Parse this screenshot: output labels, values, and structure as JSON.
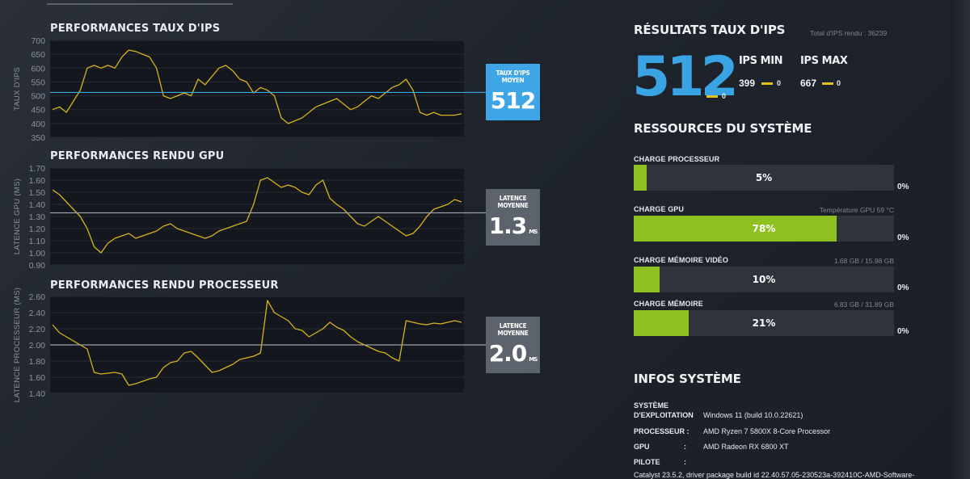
{
  "charts": [
    {
      "title": "PERFORMANCES TAUX D'IPS",
      "ylabel": "TAUX D'IPS",
      "ticks": [
        "700",
        "650",
        "600",
        "550",
        "500",
        "450",
        "400",
        "350"
      ],
      "ymin": 350,
      "ymax": 700,
      "avg": 512,
      "avg_color": "#3ea6e6",
      "avg_label": "TAUX D'IPS MOYEN",
      "avg_value": "512",
      "avg_unit": ""
    },
    {
      "title": "PERFORMANCES RENDU GPU",
      "ylabel": "LATENCE GPU (MS)",
      "ticks": [
        "1.70",
        "1.60",
        "1.50",
        "1.40",
        "1.30",
        "1.20",
        "1.10",
        "1.00",
        "0.90"
      ],
      "ymin": 0.9,
      "ymax": 1.7,
      "avg": 1.33,
      "avg_color": "#9aa0a8",
      "avg_label": "LATENCE MOYENNE",
      "avg_value": "1.3",
      "avg_unit": "MS"
    },
    {
      "title": "PERFORMANCES RENDU PROCESSEUR",
      "ylabel": "LATENCE PROCESSEUR (MS)",
      "ticks": [
        "2.60",
        "2.40",
        "2.20",
        "2.00",
        "1.80",
        "1.60",
        "1.40"
      ],
      "ymin": 1.4,
      "ymax": 2.6,
      "avg": 2.0,
      "avg_color": "#9aa0a8",
      "avg_label": "LATENCE MOYENNE",
      "avg_value": "2.0",
      "avg_unit": "MS"
    }
  ],
  "chart_data": [
    {
      "type": "line",
      "title": "PERFORMANCES TAUX D'IPS",
      "ylabel": "TAUX D'IPS",
      "ylim": [
        350,
        700
      ],
      "series": [
        {
          "values": [
            450,
            460,
            440,
            480,
            520,
            600,
            610,
            600,
            610,
            600,
            640,
            665,
            660,
            650,
            640,
            600,
            500,
            490,
            500,
            510,
            500,
            560,
            540,
            570,
            600,
            610,
            590,
            560,
            550,
            510,
            530,
            520,
            500,
            420,
            400,
            410,
            420,
            440,
            460,
            470,
            480,
            490,
            470,
            450,
            460,
            480,
            500,
            490,
            510,
            530,
            540,
            560,
            520,
            440,
            430,
            440,
            430,
            430,
            430,
            435
          ]
        }
      ],
      "reference_line": 512
    },
    {
      "type": "line",
      "title": "PERFORMANCES RENDU GPU",
      "ylabel": "LATENCE GPU (MS)",
      "ylim": [
        0.9,
        1.7
      ],
      "series": [
        {
          "values": [
            1.52,
            1.48,
            1.42,
            1.36,
            1.3,
            1.2,
            1.05,
            1.0,
            1.08,
            1.12,
            1.14,
            1.16,
            1.12,
            1.14,
            1.16,
            1.18,
            1.22,
            1.24,
            1.2,
            1.18,
            1.16,
            1.14,
            1.12,
            1.14,
            1.18,
            1.2,
            1.22,
            1.24,
            1.26,
            1.4,
            1.6,
            1.62,
            1.58,
            1.54,
            1.56,
            1.54,
            1.5,
            1.48,
            1.56,
            1.6,
            1.45,
            1.4,
            1.36,
            1.3,
            1.24,
            1.22,
            1.26,
            1.3,
            1.26,
            1.22,
            1.18,
            1.14,
            1.16,
            1.22,
            1.3,
            1.36,
            1.38,
            1.4,
            1.44,
            1.42
          ]
        }
      ],
      "reference_line": 1.33
    },
    {
      "type": "line",
      "title": "PERFORMANCES RENDU PROCESSEUR",
      "ylabel": "LATENCE PROCESSEUR (MS)",
      "ylim": [
        1.4,
        2.6
      ],
      "series": [
        {
          "values": [
            2.25,
            2.15,
            2.1,
            2.05,
            2.0,
            1.95,
            1.66,
            1.64,
            1.65,
            1.66,
            1.64,
            1.5,
            1.52,
            1.55,
            1.58,
            1.6,
            1.72,
            1.78,
            1.8,
            1.9,
            1.92,
            1.84,
            1.75,
            1.66,
            1.68,
            1.72,
            1.76,
            1.82,
            1.84,
            1.86,
            1.9,
            2.55,
            2.4,
            2.35,
            2.3,
            2.2,
            2.18,
            2.1,
            2.15,
            2.2,
            2.28,
            2.22,
            2.18,
            2.1,
            2.04,
            2.0,
            1.96,
            1.92,
            1.9,
            1.84,
            1.8,
            2.3,
            2.28,
            2.26,
            2.25,
            2.27,
            2.26,
            2.28,
            2.3,
            2.28
          ]
        }
      ],
      "reference_line": 2.0
    }
  ],
  "results": {
    "title": "RÉSULTATS TAUX D'IPS",
    "total": "Total d'IPS rendu : 36239",
    "avg_fps": "512",
    "avg_zero": "0",
    "min_label": "IPS MIN",
    "min_value": "399",
    "min_zero": "0",
    "max_label": "IPS MAX",
    "max_value": "667",
    "max_zero": "0",
    "fps_color": "#3aa3e3",
    "dash_color": "#e2c21a"
  },
  "resources": {
    "title": "RESSOURCES DU SYSTÈME",
    "bar_color": "#8ec021",
    "items": [
      {
        "label": "CHARGE PROCESSEUR",
        "right": "",
        "percent": 5,
        "text": "5%",
        "zero": "0%"
      },
      {
        "label": "CHARGE GPU",
        "right": "Température GPU 59 °C",
        "percent": 78,
        "text": "78%",
        "zero": "0%"
      },
      {
        "label": "CHARGE MÉMOIRE VIDÉO",
        "right": "1.68 GB / 15.98 GB",
        "percent": 10,
        "text": "10%",
        "zero": "0%"
      },
      {
        "label": "CHARGE MÉMOIRE",
        "right": "6.83 GB / 31.89 GB",
        "percent": 21,
        "text": "21%",
        "zero": "0%"
      }
    ]
  },
  "sysinfo": {
    "title": "INFOS SYSTÈME",
    "os_label_1": "SYSTÈME",
    "os_label_2": "D'EXPLOITATION",
    "os_value": "Windows 11 (build 10.0.22621)",
    "cpu_label": "PROCESSEUR :",
    "cpu_value": "AMD Ryzen 7 5800X 8-Core Processor",
    "gpu_label": "GPU",
    "gpu_colon": ":",
    "gpu_value": "AMD Radeon RX 6800 XT",
    "driver_label": "PILOTE",
    "driver_colon": ":",
    "driver_value": "Catalyst 23.5.2, driver package build id 22.40.57.05-230523a-392410C-AMD-Software-"
  }
}
